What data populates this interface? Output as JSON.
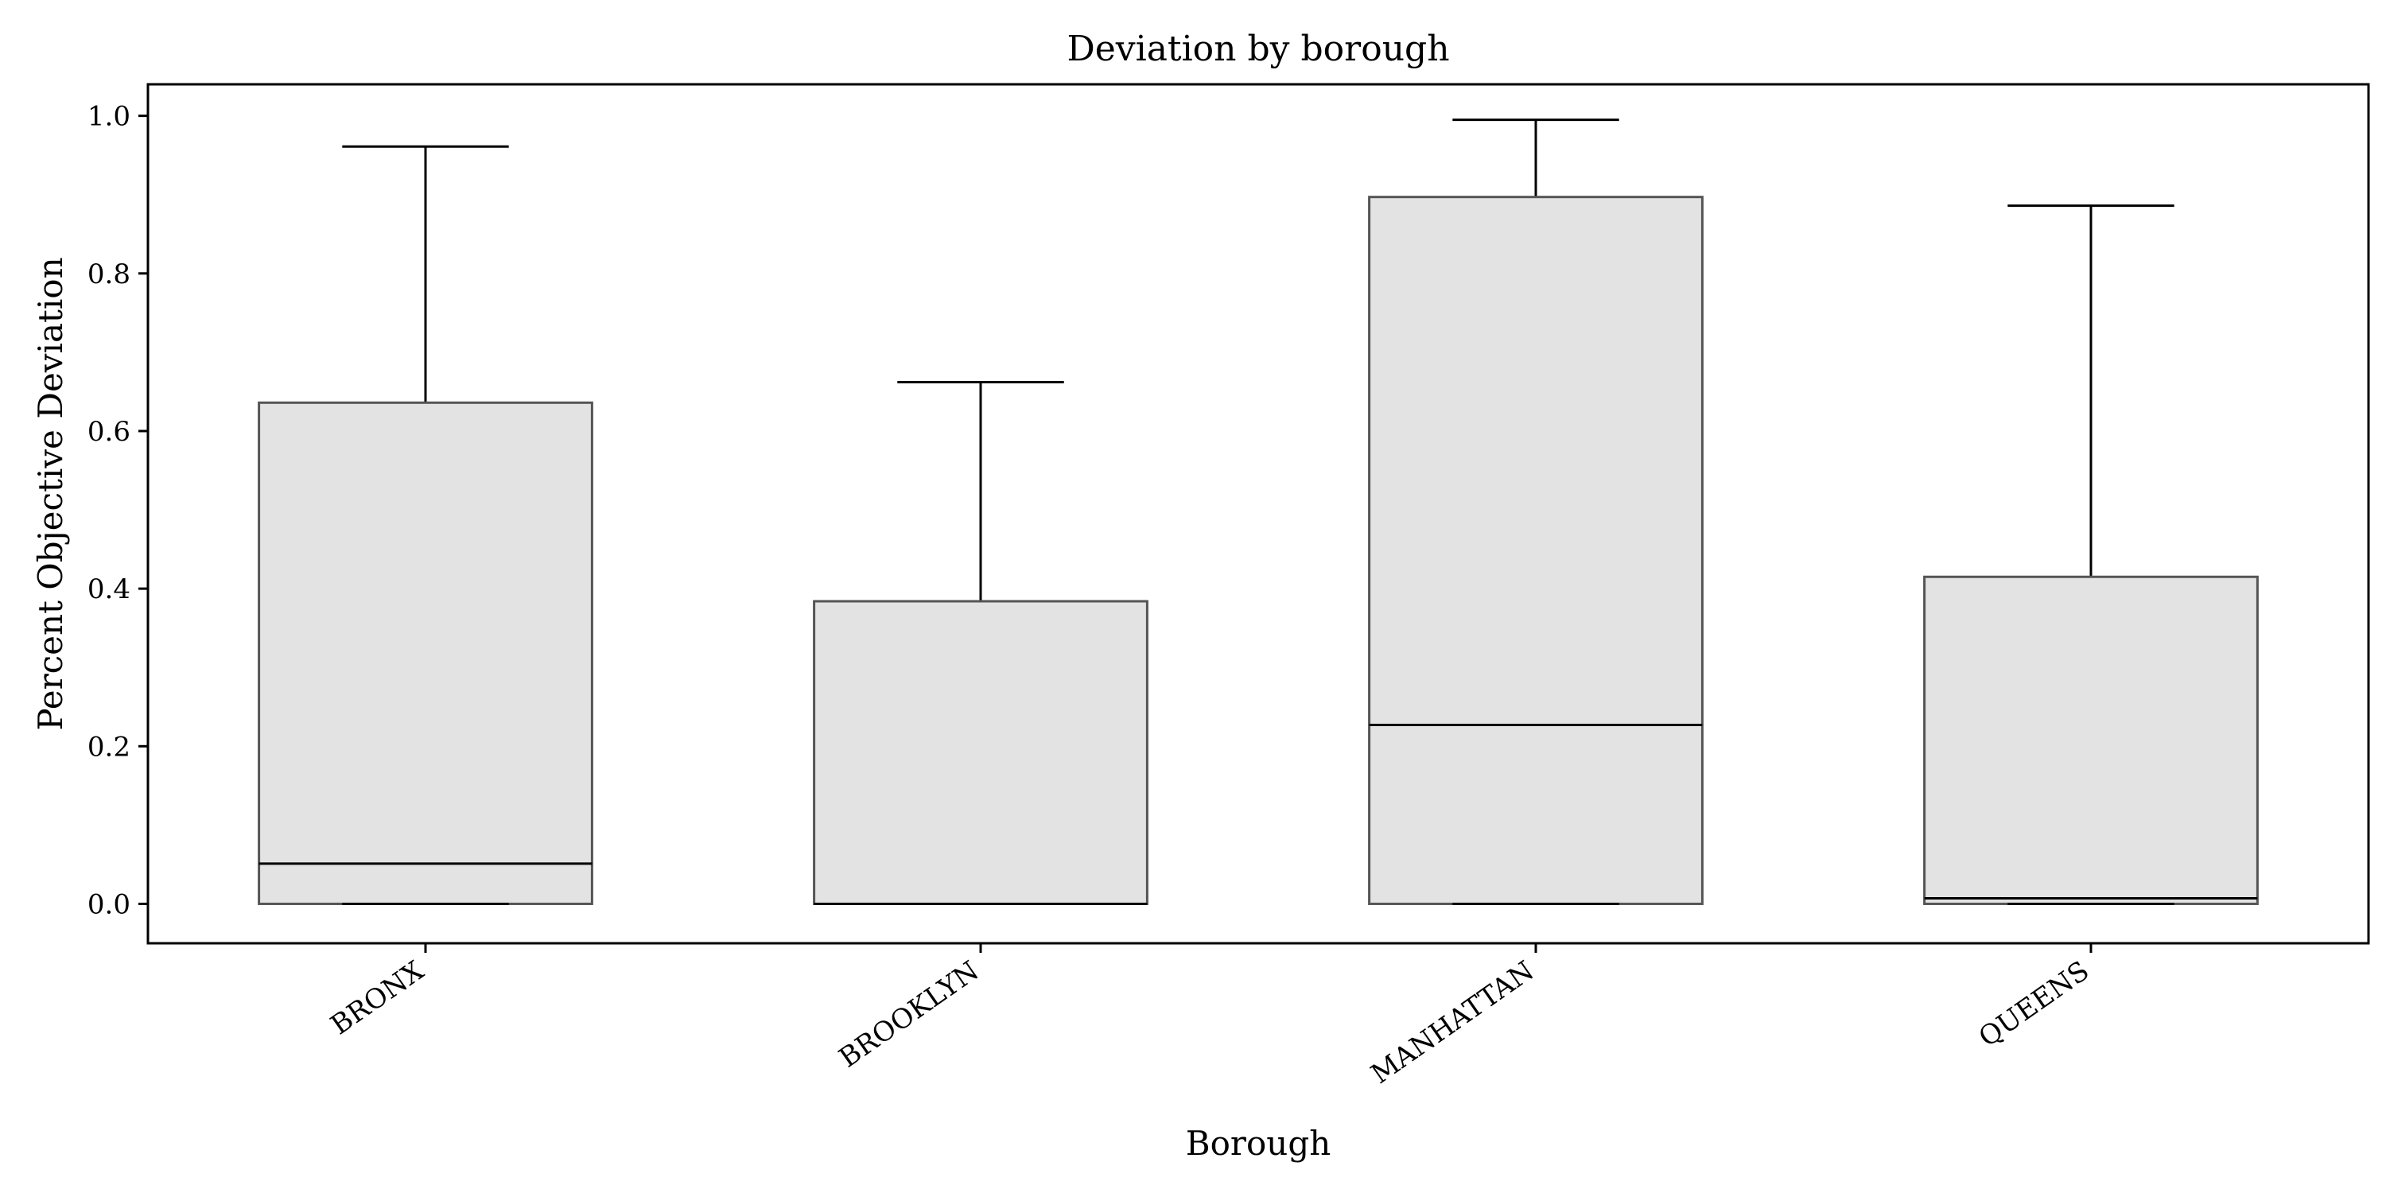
{
  "chart_data": {
    "type": "box",
    "title": "Deviation by borough",
    "xlabel": "Borough",
    "ylabel": "Percent Objective Deviation",
    "ylim": [
      -0.05,
      1.04
    ],
    "yticks": [
      0.0,
      0.2,
      0.4,
      0.6,
      0.8,
      1.0
    ],
    "ytick_labels": [
      "0.0",
      "0.2",
      "0.4",
      "0.6",
      "0.8",
      "1.0"
    ],
    "categories": [
      "BRONX",
      "BROOKLYN",
      "MANHATTAN",
      "QUEENS"
    ],
    "boxes": [
      {
        "category": "BRONX",
        "whisker_low": 0.0,
        "q1": 0.0,
        "median": 0.051,
        "q3": 0.636,
        "whisker_high": 0.961
      },
      {
        "category": "BROOKLYN",
        "whisker_low": 0.0,
        "q1": 0.0,
        "median": 0.0,
        "q3": 0.384,
        "whisker_high": 0.662
      },
      {
        "category": "MANHATTAN",
        "whisker_low": 0.0,
        "q1": 0.0,
        "median": 0.227,
        "q3": 0.897,
        "whisker_high": 0.995
      },
      {
        "category": "QUEENS",
        "whisker_low": 0.0,
        "q1": 0.0,
        "median": 0.007,
        "q3": 0.415,
        "whisker_high": 0.886
      }
    ],
    "grid": false,
    "colors": {
      "box_fill": "#e3e3e3",
      "box_edge": "#555555",
      "line": "#000000",
      "axes": "#000000"
    }
  }
}
